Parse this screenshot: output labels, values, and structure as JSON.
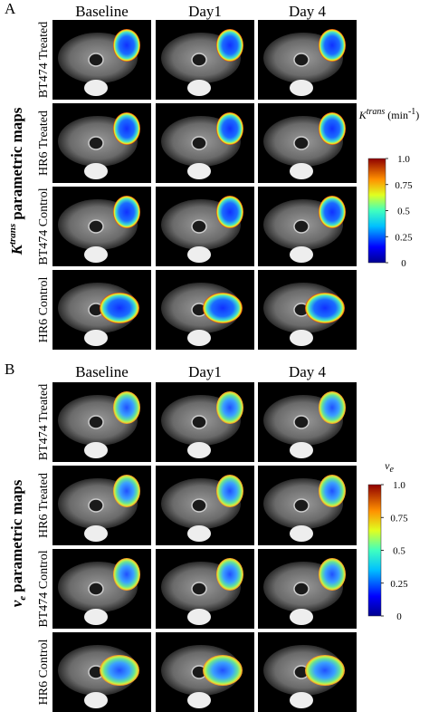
{
  "panels": [
    {
      "label": "A",
      "columns": [
        "Baseline",
        "Day1",
        "Day 4"
      ],
      "rows": [
        "BT474 Treated",
        "HR6 Treated",
        "BT474 Control",
        "HR6 Control"
      ],
      "side_title": {
        "base": "K",
        "sup": "trans",
        "rest": "parametric maps"
      },
      "colorbar": {
        "title": {
          "base": "K",
          "sup": "trans",
          "rest": " (min",
          "unit_sup": "-1",
          "end": ")"
        },
        "lim": [
          0,
          1
        ],
        "ticks": [
          {
            "value": 1,
            "label": "1.0"
          },
          0.75,
          0.5,
          0.25,
          0
        ]
      }
    },
    {
      "label": "B",
      "columns": [
        "Baseline",
        "Day1",
        "Day 4"
      ],
      "rows": [
        "BT474 Treated",
        "HR6 Treated",
        "BT474 Control",
        "HR6 Control"
      ],
      "side_title": {
        "base": "v",
        "sub": "e",
        "rest": "parametric maps"
      },
      "colorbar": {
        "title": {
          "base": "v",
          "sub": "e"
        },
        "lim": [
          0,
          1
        ],
        "ticks": [
          {
            "value": 1,
            "label": "1.0"
          },
          0.75,
          0.5,
          0.25,
          0
        ]
      }
    }
  ]
}
